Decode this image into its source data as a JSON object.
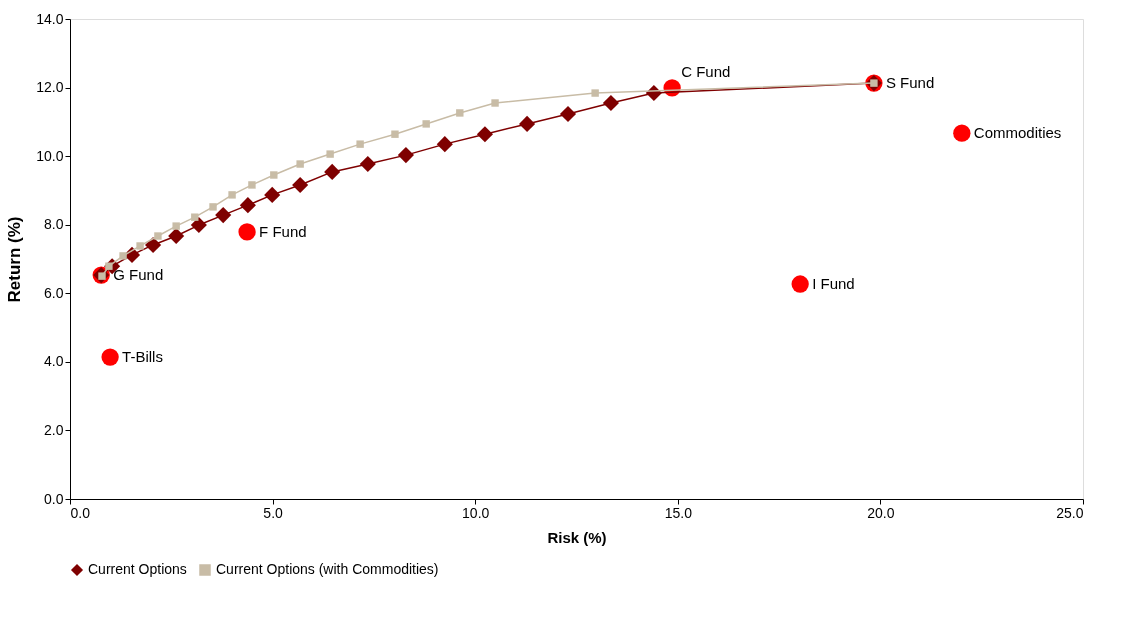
{
  "chart_data": {
    "type": "line",
    "xlabel": "Risk (%)",
    "ylabel": "Return (%)",
    "xlim": [
      0,
      25
    ],
    "ylim": [
      0,
      14
    ],
    "xticks": [
      {
        "value": 0,
        "label": "0.0"
      },
      {
        "value": 5,
        "label": "5.0"
      },
      {
        "value": 10,
        "label": "10.0"
      },
      {
        "value": 15,
        "label": "15.0"
      },
      {
        "value": 20,
        "label": "20.0"
      },
      {
        "value": 25,
        "label": "25.0"
      }
    ],
    "yticks": [
      {
        "value": 0,
        "label": "0.0"
      },
      {
        "value": 2,
        "label": "2.0"
      },
      {
        "value": 4,
        "label": "4.0"
      },
      {
        "value": 6,
        "label": "6.0"
      },
      {
        "value": 8,
        "label": "8.0"
      },
      {
        "value": 10,
        "label": "10.0"
      },
      {
        "value": 12,
        "label": "12.0"
      },
      {
        "value": 14,
        "label": "14.0"
      }
    ],
    "grid": false,
    "legend": "bottom",
    "series": [
      {
        "name": "Current Options",
        "marker": "diamond",
        "color": "#7f0000",
        "x": [
          0.77,
          1.04,
          1.53,
          2.05,
          2.62,
          3.18,
          3.78,
          4.39,
          4.99,
          5.68,
          6.47,
          7.35,
          8.29,
          9.25,
          10.24,
          11.28,
          12.29,
          13.35,
          14.41,
          19.84
        ],
        "values": [
          6.53,
          6.79,
          7.12,
          7.41,
          7.67,
          7.99,
          8.28,
          8.57,
          8.87,
          9.16,
          9.54,
          9.77,
          10.03,
          10.35,
          10.64,
          10.94,
          11.23,
          11.55,
          11.84,
          12.13
        ]
      },
      {
        "name": "Current Options (with Commodities)",
        "marker": "square",
        "color": "#c8bca6",
        "x": [
          0.79,
          0.96,
          1.31,
          1.73,
          2.17,
          2.62,
          3.08,
          3.53,
          4.0,
          4.49,
          5.03,
          5.68,
          6.42,
          7.16,
          8.02,
          8.79,
          9.62,
          10.49,
          12.96,
          19.84
        ],
        "values": [
          6.5,
          6.79,
          7.09,
          7.38,
          7.67,
          7.96,
          8.22,
          8.52,
          8.87,
          9.16,
          9.45,
          9.77,
          10.06,
          10.35,
          10.64,
          10.94,
          11.26,
          11.55,
          11.84,
          12.13
        ]
      },
      {
        "type": "scatter",
        "marker": "circle",
        "color": "#ff0000",
        "x": [
          0.77,
          0.99,
          4.37,
          14.86,
          19.84,
          18.02,
          22.01
        ],
        "values": [
          6.53,
          4.14,
          7.79,
          11.99,
          12.13,
          6.27,
          10.67
        ]
      }
    ],
    "annotations": [
      {
        "text": "G Fund",
        "x": 0.77,
        "y": 6.53
      },
      {
        "text": "T-Bills",
        "x": 0.99,
        "y": 4.14
      },
      {
        "text": "F Fund",
        "x": 4.37,
        "y": 7.79
      },
      {
        "text": "C Fund",
        "x": 14.86,
        "y": 11.99
      },
      {
        "text": "S Fund",
        "x": 19.84,
        "y": 12.13
      },
      {
        "text": "I Fund",
        "x": 18.02,
        "y": 6.27
      },
      {
        "text": "Commodities",
        "x": 22.01,
        "y": 10.67
      }
    ]
  }
}
